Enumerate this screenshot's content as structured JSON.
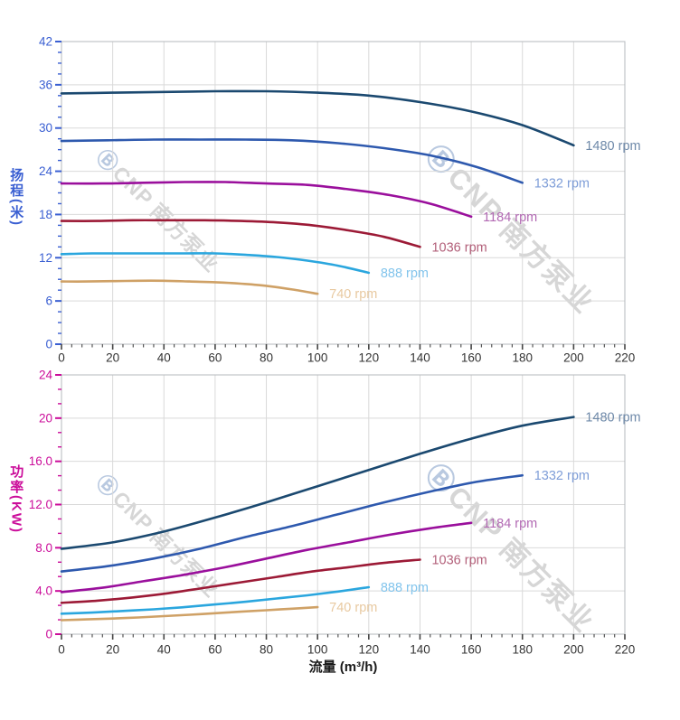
{
  "watermark": {
    "logo": "Ⓑ",
    "text": "CNP 南方泵业"
  },
  "x_axis": {
    "title": "流量 (m³/h)",
    "min": 0,
    "max": 220,
    "major_step": 20,
    "minor_step": 4,
    "tick_labels": [
      "0",
      "20",
      "40",
      "60",
      "80",
      "100",
      "120",
      "140",
      "160",
      "180",
      "200",
      "220"
    ],
    "label_color": "#333333"
  },
  "chart_data": [
    {
      "type": "line",
      "name": "head",
      "y_axis": {
        "title": "扬程(米)",
        "min": 0,
        "max": 42,
        "major_step": 6,
        "minor_step": 1.5,
        "tick_labels": [
          "0",
          "6",
          "12",
          "18",
          "24",
          "30",
          "36",
          "42"
        ],
        "color": "#3a5fd2"
      },
      "grid": true,
      "series": [
        {
          "name": "1480 rpm",
          "color": "#1b4970",
          "label_color": "#6e89a9",
          "points": [
            [
              0,
              34.8
            ],
            [
              20,
              34.9
            ],
            [
              40,
              35.0
            ],
            [
              60,
              35.1
            ],
            [
              80,
              35.1
            ],
            [
              100,
              34.9
            ],
            [
              120,
              34.5
            ],
            [
              140,
              33.6
            ],
            [
              160,
              32.3
            ],
            [
              180,
              30.4
            ],
            [
              200,
              27.6
            ]
          ]
        },
        {
          "name": "1332 rpm",
          "color": "#2e59ae",
          "label_color": "#7f9ed8",
          "points": [
            [
              0,
              28.2
            ],
            [
              18,
              28.3
            ],
            [
              36,
              28.4
            ],
            [
              54,
              28.4
            ],
            [
              72,
              28.4
            ],
            [
              90,
              28.3
            ],
            [
              108,
              27.9
            ],
            [
              126,
              27.2
            ],
            [
              144,
              26.2
            ],
            [
              162,
              24.6
            ],
            [
              180,
              22.4
            ]
          ]
        },
        {
          "name": "1184 rpm",
          "color": "#9a0f9c",
          "label_color": "#b269b3",
          "points": [
            [
              0,
              22.3
            ],
            [
              16,
              22.3
            ],
            [
              32,
              22.4
            ],
            [
              48,
              22.5
            ],
            [
              64,
              22.5
            ],
            [
              80,
              22.3
            ],
            [
              96,
              22.1
            ],
            [
              112,
              21.5
            ],
            [
              128,
              20.7
            ],
            [
              144,
              19.5
            ],
            [
              160,
              17.7
            ]
          ]
        },
        {
          "name": "1036 rpm",
          "color": "#9c1a36",
          "label_color": "#b25f79",
          "points": [
            [
              0,
              17.1
            ],
            [
              14,
              17.1
            ],
            [
              28,
              17.2
            ],
            [
              42,
              17.2
            ],
            [
              56,
              17.2
            ],
            [
              70,
              17.1
            ],
            [
              84,
              16.9
            ],
            [
              98,
              16.5
            ],
            [
              112,
              15.8
            ],
            [
              126,
              14.9
            ],
            [
              140,
              13.5
            ]
          ]
        },
        {
          "name": "888 rpm",
          "color": "#2aa6de",
          "label_color": "#82c4ec",
          "points": [
            [
              0,
              12.5
            ],
            [
              12,
              12.6
            ],
            [
              24,
              12.6
            ],
            [
              36,
              12.6
            ],
            [
              48,
              12.6
            ],
            [
              60,
              12.6
            ],
            [
              72,
              12.4
            ],
            [
              84,
              12.1
            ],
            [
              96,
              11.6
            ],
            [
              108,
              10.9
            ],
            [
              120,
              9.9
            ]
          ]
        },
        {
          "name": "740 rpm",
          "color": "#cfa166",
          "label_color": "#e8c9a0",
          "points": [
            [
              0,
              8.7
            ],
            [
              10,
              8.7
            ],
            [
              20,
              8.75
            ],
            [
              30,
              8.8
            ],
            [
              40,
              8.8
            ],
            [
              50,
              8.7
            ],
            [
              60,
              8.6
            ],
            [
              70,
              8.4
            ],
            [
              80,
              8.1
            ],
            [
              90,
              7.6
            ],
            [
              100,
              7.0
            ]
          ]
        }
      ]
    },
    {
      "type": "line",
      "name": "power",
      "y_axis": {
        "title": "功率(KW)",
        "min": 0,
        "max": 24,
        "major_step": 4,
        "minor_step": 1.3333333,
        "tick_labels": [
          "0",
          "4.0",
          "8.0",
          "12.0",
          "16.0",
          "20",
          "24"
        ],
        "color": "#cb0d9a"
      },
      "grid": true,
      "series": [
        {
          "name": "1480 rpm",
          "color": "#1b4970",
          "label_color": "#6e89a9",
          "points": [
            [
              0,
              7.9
            ],
            [
              20,
              8.5
            ],
            [
              40,
              9.5
            ],
            [
              60,
              10.8
            ],
            [
              80,
              12.2
            ],
            [
              100,
              13.7
            ],
            [
              120,
              15.2
            ],
            [
              140,
              16.7
            ],
            [
              160,
              18.1
            ],
            [
              180,
              19.3
            ],
            [
              200,
              20.1
            ]
          ]
        },
        {
          "name": "1332 rpm",
          "color": "#2e59ae",
          "label_color": "#7f9ed8",
          "points": [
            [
              0,
              5.8
            ],
            [
              18,
              6.3
            ],
            [
              36,
              7.0
            ],
            [
              54,
              7.9
            ],
            [
              72,
              9.0
            ],
            [
              90,
              10.0
            ],
            [
              108,
              11.1
            ],
            [
              126,
              12.2
            ],
            [
              144,
              13.2
            ],
            [
              162,
              14.1
            ],
            [
              180,
              14.7
            ]
          ]
        },
        {
          "name": "1184 rpm",
          "color": "#9a0f9c",
          "label_color": "#b269b3",
          "points": [
            [
              0,
              3.9
            ],
            [
              16,
              4.3
            ],
            [
              32,
              4.9
            ],
            [
              48,
              5.5
            ],
            [
              64,
              6.2
            ],
            [
              80,
              7.0
            ],
            [
              96,
              7.8
            ],
            [
              112,
              8.5
            ],
            [
              128,
              9.2
            ],
            [
              144,
              9.8
            ],
            [
              160,
              10.3
            ]
          ]
        },
        {
          "name": "1036 rpm",
          "color": "#9c1a36",
          "label_color": "#b25f79",
          "points": [
            [
              0,
              2.9
            ],
            [
              14,
              3.1
            ],
            [
              28,
              3.4
            ],
            [
              42,
              3.8
            ],
            [
              56,
              4.3
            ],
            [
              70,
              4.8
            ],
            [
              84,
              5.3
            ],
            [
              98,
              5.8
            ],
            [
              112,
              6.2
            ],
            [
              126,
              6.6
            ],
            [
              140,
              6.9
            ]
          ]
        },
        {
          "name": "888 rpm",
          "color": "#2aa6de",
          "label_color": "#82c4ec",
          "points": [
            [
              0,
              1.9
            ],
            [
              12,
              2.0
            ],
            [
              24,
              2.15
            ],
            [
              36,
              2.3
            ],
            [
              48,
              2.5
            ],
            [
              60,
              2.75
            ],
            [
              72,
              3.0
            ],
            [
              84,
              3.3
            ],
            [
              96,
              3.6
            ],
            [
              108,
              3.95
            ],
            [
              120,
              4.35
            ]
          ]
        },
        {
          "name": "740 rpm",
          "color": "#cfa166",
          "label_color": "#e8c9a0",
          "points": [
            [
              0,
              1.3
            ],
            [
              10,
              1.37
            ],
            [
              20,
              1.45
            ],
            [
              30,
              1.55
            ],
            [
              40,
              1.67
            ],
            [
              50,
              1.8
            ],
            [
              60,
              1.94
            ],
            [
              70,
              2.08
            ],
            [
              80,
              2.22
            ],
            [
              90,
              2.36
            ],
            [
              100,
              2.5
            ]
          ]
        }
      ]
    }
  ]
}
